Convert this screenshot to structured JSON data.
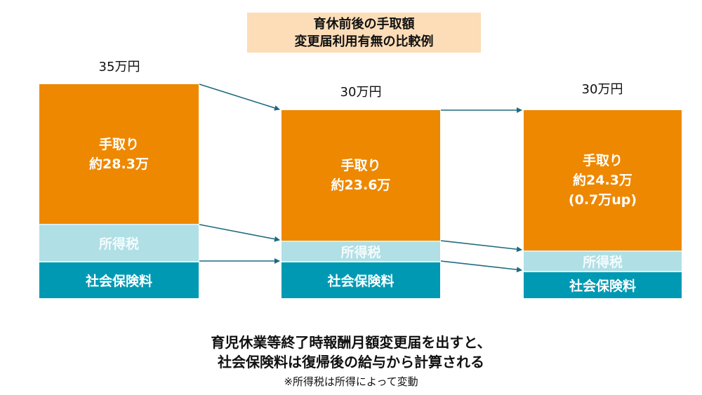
{
  "title": {
    "line1": "育休前後の手取額",
    "line2": "変更届利用有無の比較例"
  },
  "bars": [
    {
      "total": "35万円",
      "take_home": {
        "label": "手取り",
        "amount": "約28.3万",
        "note": ""
      },
      "income_tax": "所得税",
      "social_insurance": "社会保険料"
    },
    {
      "total": "30万円",
      "take_home": {
        "label": "手取り",
        "amount": "約23.6万",
        "note": ""
      },
      "income_tax": "所得税",
      "social_insurance": "社会保険料"
    },
    {
      "total": "30万円",
      "take_home": {
        "label": "手取り",
        "amount": "約24.3万",
        "note": "(0.7万up)"
      },
      "income_tax": "所得税",
      "social_insurance": "社会保険料"
    }
  ],
  "footer": {
    "line1": "育児休業等終了時報酬月額変更届を出すと、",
    "line2": "社会保険料は復帰後の給与から計算される",
    "note": "※所得税は所得によって変動"
  },
  "colors": {
    "take_home": "#ee8800",
    "income_tax": "#b0dfe6",
    "social_insurance": "#0099b3",
    "arrow": "#1f6a80",
    "title_bg": "#fcddb8"
  }
}
